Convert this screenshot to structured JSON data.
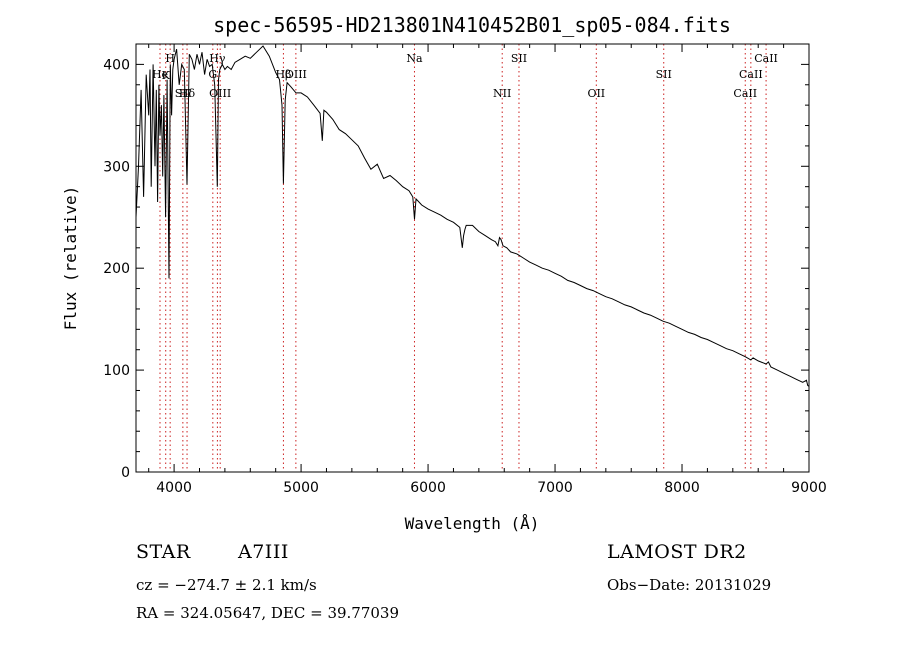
{
  "chart_data": {
    "type": "line",
    "title": "spec-56595-HD213801N410452B01_sp05-084.fits",
    "xlabel": "Wavelength (Å)",
    "ylabel": "Flux (relative)",
    "xlim": [
      3700,
      9000
    ],
    "ylim": [
      0,
      420
    ],
    "x_ticks": [
      4000,
      5000,
      6000,
      7000,
      8000,
      9000
    ],
    "y_ticks": [
      0,
      100,
      200,
      300,
      400
    ],
    "grid": false,
    "series": [
      {
        "x": [
          3700,
          3720,
          3740,
          3760,
          3780,
          3800,
          3810,
          3820,
          3835,
          3850,
          3860,
          3870,
          3880,
          3889,
          3900,
          3910,
          3920,
          3933,
          3945,
          3960,
          3970,
          3980,
          3990,
          4000,
          4020,
          4040,
          4060,
          4080,
          4102,
          4120,
          4140,
          4160,
          4180,
          4200,
          4220,
          4240,
          4260,
          4280,
          4300,
          4320,
          4340,
          4350,
          4360,
          4380,
          4400,
          4420,
          4450,
          4480,
          4520,
          4560,
          4600,
          4650,
          4700,
          4750,
          4800,
          4830,
          4850,
          4861,
          4875,
          4890,
          4920,
          4960,
          5000,
          5050,
          5100,
          5150,
          5167,
          5180,
          5200,
          5250,
          5300,
          5350,
          5400,
          5450,
          5500,
          5550,
          5600,
          5650,
          5700,
          5750,
          5800,
          5850,
          5880,
          5893,
          5905,
          5920,
          5950,
          6000,
          6050,
          6100,
          6150,
          6200,
          6250,
          6270,
          6280,
          6290,
          6300,
          6350,
          6400,
          6450,
          6500,
          6530,
          6550,
          6563,
          6575,
          6590,
          6620,
          6650,
          6700,
          6750,
          6800,
          6850,
          6900,
          6950,
          7000,
          7050,
          7100,
          7150,
          7200,
          7250,
          7300,
          7350,
          7400,
          7450,
          7500,
          7550,
          7600,
          7650,
          7700,
          7750,
          7800,
          7850,
          7900,
          7950,
          8000,
          8050,
          8100,
          8150,
          8200,
          8250,
          8300,
          8350,
          8400,
          8450,
          8500,
          8542,
          8560,
          8600,
          8662,
          8680,
          8700,
          8750,
          8800,
          8850,
          8900,
          8950,
          8980,
          8990,
          9000
        ],
        "y": [
          250,
          300,
          375,
          270,
          390,
          350,
          395,
          280,
          400,
          300,
          375,
          265,
          380,
          330,
          360,
          290,
          370,
          250,
          385,
          190,
          400,
          350,
          395,
          405,
          415,
          380,
          400,
          395,
          282,
          410,
          405,
          395,
          410,
          400,
          412,
          390,
          405,
          398,
          400,
          380,
          280,
          385,
          395,
          400,
          395,
          398,
          395,
          402,
          405,
          408,
          406,
          412,
          418,
          408,
          392,
          385,
          360,
          283,
          365,
          382,
          378,
          372,
          372,
          368,
          360,
          352,
          325,
          355,
          353,
          346,
          336,
          332,
          326,
          320,
          308,
          297,
          302,
          288,
          291,
          286,
          280,
          276,
          270,
          248,
          268,
          266,
          262,
          258,
          255,
          252,
          248,
          245,
          240,
          220,
          232,
          238,
          242,
          242,
          236,
          232,
          228,
          226,
          222,
          230,
          228,
          222,
          220,
          216,
          214,
          210,
          206,
          203,
          200,
          198,
          195,
          192,
          188,
          186,
          183,
          180,
          178,
          175,
          172,
          170,
          167,
          164,
          162,
          159,
          156,
          154,
          151,
          148,
          146,
          143,
          140,
          137,
          135,
          132,
          130,
          127,
          124,
          121,
          119,
          116,
          113,
          110,
          112,
          109,
          106,
          108,
          103,
          100,
          97,
          94,
          91,
          88,
          90,
          85,
          84
        ]
      }
    ],
    "line_labels": [
      {
        "label": "K",
        "x": 3934,
        "row": 1
      },
      {
        "label": "H",
        "x": 3969,
        "row": 0
      },
      {
        "label": "He",
        "x": 3889,
        "row": 2
      },
      {
        "label": "SII",
        "x": 4069,
        "row": 3
      },
      {
        "label": "Hδ",
        "x": 4102,
        "row": 3
      },
      {
        "label": "Hγ",
        "x": 4341,
        "row": 0
      },
      {
        "label": "G",
        "x": 4305,
        "row": 2
      },
      {
        "label": "OIII",
        "x": 4363,
        "row": 3
      },
      {
        "label": "Hβ",
        "x": 4861,
        "row": 2
      },
      {
        "label": "OIII",
        "x": 4959,
        "row": 2
      },
      {
        "label": "Na",
        "x": 5893,
        "row": 0
      },
      {
        "label": "SII",
        "x": 6716,
        "row": 0
      },
      {
        "label": "NII",
        "x": 6584,
        "row": 3
      },
      {
        "label": "OII",
        "x": 7325,
        "row": 3
      },
      {
        "label": "SII",
        "x": 7856,
        "row": 2
      },
      {
        "label": "CaII",
        "x": 8498,
        "row": 3
      },
      {
        "label": "CaII",
        "x": 8542,
        "row": 2
      },
      {
        "label": "CaII",
        "x": 8662,
        "row": 0
      }
    ],
    "line_markers": [
      3889,
      3934,
      3969,
      4069,
      4102,
      4305,
      4341,
      4363,
      4861,
      4959,
      5893,
      6584,
      6716,
      7325,
      7856,
      8498,
      8542,
      8662
    ]
  },
  "info": {
    "object_type": "STAR",
    "subclass": "A7III",
    "survey": "LAMOST DR2",
    "redshift": "cz = −274.7 ± 2.1 km/s",
    "obs_date": "Obs−Date: 20131029",
    "coords": "RA = 324.05647, DEC =  39.77039"
  },
  "colors": {
    "spectrum": "#000000",
    "markers": "#cc2222",
    "axes": "#000000"
  }
}
